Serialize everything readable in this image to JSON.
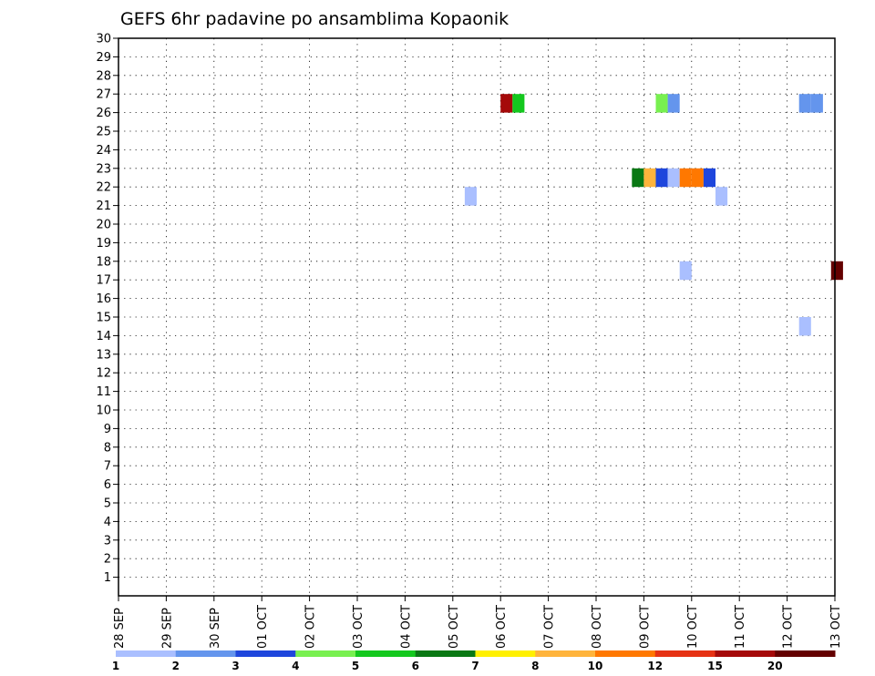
{
  "chart_data": {
    "type": "heatmap",
    "title": "GEFS 6hr padavine po ansamblima Kopaonik",
    "xlabel": "",
    "ylabel": "",
    "x_ticks": [
      "28 SEP",
      "29 SEP",
      "30 SEP",
      "01 OCT",
      "02 OCT",
      "03 OCT",
      "04 OCT",
      "05 OCT",
      "06 OCT",
      "07 OCT",
      "08 OCT",
      "09 OCT",
      "10 OCT",
      "11 OCT",
      "12 OCT",
      "13 OCT"
    ],
    "y_ticks": [
      1,
      2,
      3,
      4,
      5,
      6,
      7,
      8,
      9,
      10,
      11,
      12,
      13,
      14,
      15,
      16,
      17,
      18,
      19,
      20,
      21,
      22,
      23,
      24,
      25,
      26,
      27,
      28,
      29,
      30
    ],
    "x_range_days": [
      0,
      15
    ],
    "y_range": [
      0,
      30
    ],
    "grid": true,
    "legend": {
      "placement": "bottom",
      "colors": [
        "#aabfff",
        "#6495ed",
        "#1e46dc",
        "#78f050",
        "#14c81e",
        "#0a7814",
        "#fff000",
        "#ffb43c",
        "#ff7800",
        "#e63214",
        "#a50a0a",
        "#640000"
      ],
      "labels": [
        "1",
        "2",
        "3",
        "4",
        "5",
        "6",
        "7",
        "8",
        "10",
        "12",
        "15",
        "20"
      ]
    },
    "cells": [
      {
        "day": 8.0,
        "y0": 26,
        "y1": 27,
        "color": "#a50a0a"
      },
      {
        "day": 8.25,
        "y0": 26,
        "y1": 27,
        "color": "#14c81e"
      },
      {
        "day": 11.25,
        "y0": 26,
        "y1": 27,
        "color": "#78f050"
      },
      {
        "day": 11.5,
        "y0": 26,
        "y1": 27,
        "color": "#6495ed"
      },
      {
        "day": 14.25,
        "y0": 26,
        "y1": 27,
        "color": "#6495ed"
      },
      {
        "day": 14.5,
        "y0": 26,
        "y1": 27,
        "color": "#6495ed"
      },
      {
        "day": 10.75,
        "y0": 22,
        "y1": 23,
        "color": "#0a7814"
      },
      {
        "day": 11.0,
        "y0": 22,
        "y1": 23,
        "color": "#ffb43c"
      },
      {
        "day": 11.25,
        "y0": 22,
        "y1": 23,
        "color": "#1e46dc"
      },
      {
        "day": 11.5,
        "y0": 22,
        "y1": 23,
        "color": "#aabfff"
      },
      {
        "day": 11.75,
        "y0": 22,
        "y1": 23,
        "color": "#ff7800"
      },
      {
        "day": 12.0,
        "y0": 22,
        "y1": 23,
        "color": "#ff7800"
      },
      {
        "day": 12.25,
        "y0": 22,
        "y1": 23,
        "color": "#1e46dc"
      },
      {
        "day": 7.25,
        "y0": 21,
        "y1": 22,
        "color": "#aabfff"
      },
      {
        "day": 12.5,
        "y0": 21,
        "y1": 22,
        "color": "#aabfff"
      },
      {
        "day": 11.75,
        "y0": 17,
        "y1": 18,
        "color": "#aabfff"
      },
      {
        "day": 14.92,
        "y0": 17,
        "y1": 18,
        "color": "#640000"
      },
      {
        "day": 14.25,
        "y0": 14,
        "y1": 15,
        "color": "#aabfff"
      }
    ]
  }
}
